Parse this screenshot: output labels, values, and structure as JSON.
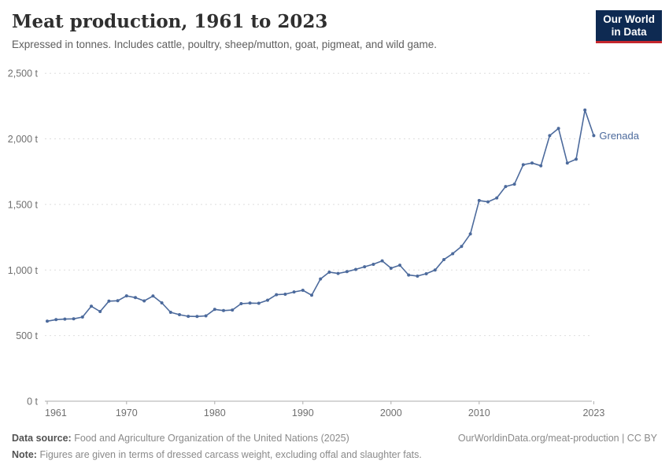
{
  "header": {
    "title": "Meat production, 1961 to 2023",
    "subtitle": "Expressed in tonnes. Includes cattle, poultry, sheep/mutton, goat, pigmeat, and wild game.",
    "logo": {
      "line1": "Our World",
      "line2": "in Data",
      "bg_color": "#0e2a52",
      "accent_color": "#c5272d"
    }
  },
  "chart_data": {
    "type": "line",
    "title": "Meat production, 1961 to 2023",
    "unit": "t",
    "xlim": [
      1961,
      2023
    ],
    "ylim": [
      0,
      2500
    ],
    "grid": "dashed-horizontal",
    "legend_position": "end-of-line-label",
    "x_ticks": [
      1961,
      1970,
      1980,
      1990,
      2000,
      2010,
      2023
    ],
    "y_ticks": [
      {
        "value": 0,
        "label": "0 t"
      },
      {
        "value": 500,
        "label": "500 t"
      },
      {
        "value": 1000,
        "label": "1,000 t"
      },
      {
        "value": 1500,
        "label": "1,500 t"
      },
      {
        "value": 2000,
        "label": "2,000 t"
      },
      {
        "value": 2500,
        "label": "2,500 t"
      }
    ],
    "series": [
      {
        "name": "Grenada",
        "color": "#4c6a9c",
        "x": [
          1961,
          1962,
          1963,
          1964,
          1965,
          1966,
          1967,
          1968,
          1969,
          1970,
          1971,
          1972,
          1973,
          1974,
          1975,
          1976,
          1977,
          1978,
          1979,
          1980,
          1981,
          1982,
          1983,
          1984,
          1985,
          1986,
          1987,
          1988,
          1989,
          1990,
          1991,
          1992,
          1993,
          1994,
          1995,
          1996,
          1997,
          1998,
          1999,
          2000,
          2001,
          2002,
          2003,
          2004,
          2005,
          2006,
          2007,
          2008,
          2009,
          2010,
          2011,
          2012,
          2013,
          2014,
          2015,
          2016,
          2017,
          2018,
          2019,
          2020,
          2021,
          2022,
          2023
        ],
        "values": [
          610,
          622,
          626,
          628,
          642,
          724,
          684,
          763,
          766,
          803,
          790,
          765,
          802,
          750,
          678,
          660,
          647,
          646,
          651,
          700,
          691,
          695,
          744,
          748,
          747,
          770,
          812,
          816,
          833,
          846,
          808,
          932,
          984,
          974,
          988,
          1005,
          1025,
          1044,
          1070,
          1014,
          1037,
          962,
          954,
          972,
          1000,
          1080,
          1125,
          1180,
          1275,
          1530,
          1520,
          1550,
          1637,
          1655,
          1803,
          1816,
          1795,
          2025,
          2080,
          1816,
          1845,
          2220,
          2025
        ]
      }
    ]
  },
  "footer": {
    "data_source_label": "Data source:",
    "data_source_text": "Food and Agriculture Organization of the United Nations (2025)",
    "note_label": "Note:",
    "note_text": "Figures are given in terms of dressed carcass weight, excluding offal and slaughter fats.",
    "link": "OurWorldinData.org/meat-production | CC BY"
  }
}
